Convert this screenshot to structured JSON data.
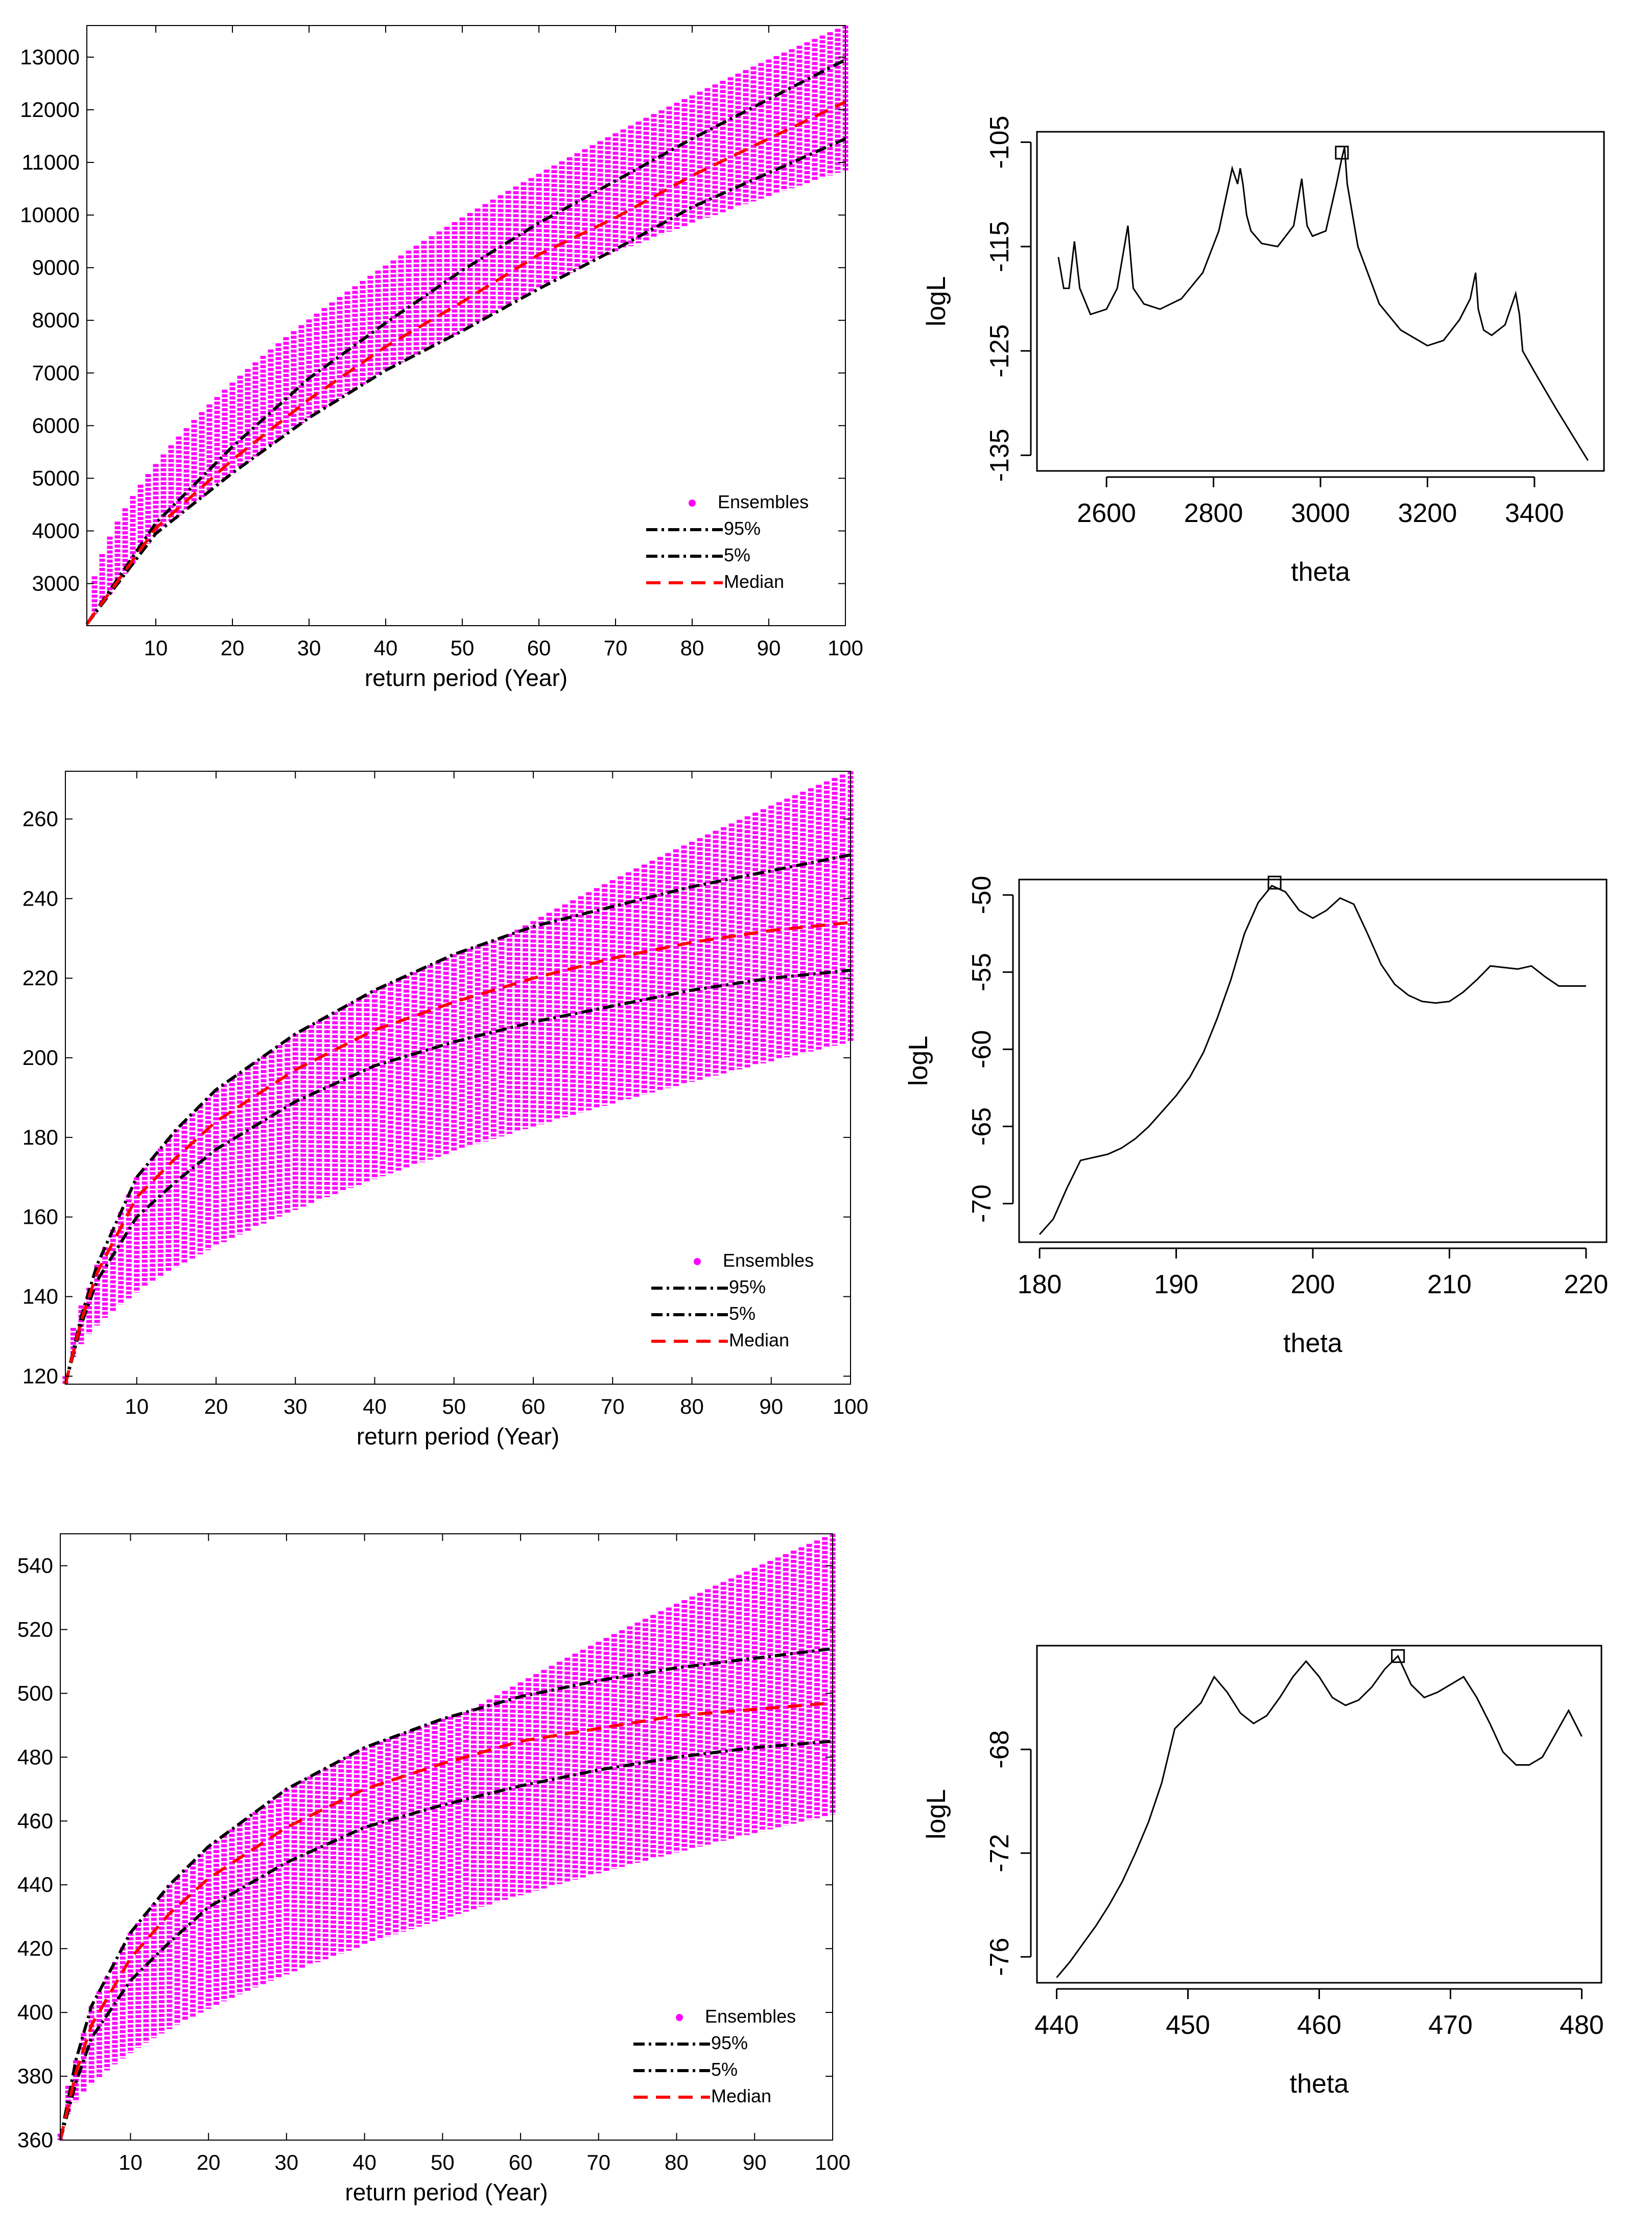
{
  "chart_data": [
    {
      "type": "scatter",
      "panel": "left-top",
      "title": "",
      "xlabel": "return period (Year)",
      "ylabel": "",
      "xlim": [
        1,
        100
      ],
      "ylim": [
        2200,
        13600
      ],
      "xticks": [
        10,
        20,
        30,
        40,
        50,
        60,
        70,
        80,
        90,
        100
      ],
      "yticks": [
        3000,
        4000,
        5000,
        6000,
        7000,
        8000,
        9000,
        10000,
        11000,
        12000,
        13000
      ],
      "legend_position": "bottom-right",
      "legend": [
        "Ensembles",
        "95%",
        "5%",
        "Median"
      ],
      "series": [
        {
          "name": "95%",
          "style": "dash-dot",
          "color": "#000000",
          "x": [
            1,
            10,
            20,
            30,
            40,
            50,
            60,
            70,
            80,
            90,
            100
          ],
          "values": [
            2230,
            4150,
            5600,
            6900,
            7950,
            8950,
            9850,
            10650,
            11450,
            12200,
            12950
          ]
        },
        {
          "name": "5%",
          "style": "dash-dot",
          "color": "#000000",
          "x": [
            1,
            10,
            20,
            30,
            40,
            50,
            60,
            70,
            80,
            90,
            100
          ],
          "values": [
            2230,
            3950,
            5100,
            6150,
            7050,
            7800,
            8600,
            9350,
            10150,
            10800,
            11450
          ]
        },
        {
          "name": "Median",
          "style": "dashed",
          "color": "#ff0000",
          "x": [
            1,
            10,
            20,
            30,
            40,
            50,
            60,
            70,
            80,
            90,
            100
          ],
          "values": [
            2230,
            4050,
            5350,
            6500,
            7500,
            8350,
            9250,
            9950,
            10750,
            11450,
            12150
          ]
        },
        {
          "name": "Ensembles",
          "style": "dots",
          "color": "#ff00ff",
          "x": [
            1,
            100
          ],
          "upper": [
            2230,
            13600
          ],
          "lower": [
            2230,
            10850
          ]
        }
      ]
    },
    {
      "type": "line",
      "panel": "right-top",
      "xlabel": "theta",
      "ylabel": "logL",
      "xlim": [
        2470,
        3530
      ],
      "ylim": [
        -136.5,
        -104
      ],
      "xticks": [
        2600,
        2800,
        3000,
        3200,
        3400
      ],
      "yticks": [
        -105,
        -115,
        -125,
        -135
      ],
      "max_marker": {
        "x": 3040,
        "y": -106
      },
      "series": [
        {
          "name": "logL",
          "x": [
            2510,
            2520,
            2530,
            2540,
            2550,
            2570,
            2600,
            2620,
            2640,
            2650,
            2670,
            2700,
            2740,
            2780,
            2810,
            2835,
            2845,
            2850,
            2855,
            2862,
            2870,
            2890,
            2920,
            2950,
            2965,
            2975,
            2985,
            3010,
            3030,
            3040,
            3045,
            3050,
            3070,
            3110,
            3150,
            3200,
            3230,
            3260,
            3280,
            3290,
            3295,
            3305,
            3320,
            3345,
            3365,
            3372,
            3378,
            3400,
            3440,
            3500
          ],
          "values": [
            -116,
            -119,
            -119,
            -114.5,
            -119,
            -121.5,
            -121,
            -119,
            -113,
            -119,
            -120.5,
            -121,
            -120,
            -117.5,
            -113.5,
            -107.5,
            -109,
            -107.5,
            -109,
            -112,
            -113.5,
            -114.7,
            -115,
            -113,
            -108.5,
            -113,
            -114,
            -113.5,
            -109,
            -106.5,
            -105.5,
            -109,
            -115,
            -120.5,
            -123,
            -124.5,
            -124,
            -122,
            -120,
            -117.5,
            -121,
            -123,
            -123.5,
            -122.5,
            -119.5,
            -121.5,
            -125,
            -127,
            -130.5,
            -135.5
          ]
        }
      ]
    },
    {
      "type": "scatter",
      "panel": "left-middle",
      "title": "",
      "xlabel": "return period (Year)",
      "ylabel": "",
      "xlim": [
        1,
        100
      ],
      "ylim": [
        118,
        272
      ],
      "xticks": [
        10,
        20,
        30,
        40,
        50,
        60,
        70,
        80,
        90,
        100
      ],
      "yticks": [
        120,
        140,
        160,
        180,
        200,
        220,
        240,
        260
      ],
      "legend_position": "bottom-right",
      "legend": [
        "Ensembles",
        "95%",
        "5%",
        "Median"
      ],
      "series": [
        {
          "name": "95%",
          "style": "dash-dot",
          "color": "#000000",
          "x": [
            1,
            3,
            5,
            10,
            15,
            20,
            30,
            40,
            50,
            60,
            70,
            80,
            90,
            100
          ],
          "values": [
            118,
            135,
            148,
            170,
            182,
            192,
            206,
            217,
            226,
            233,
            238,
            243,
            247,
            251
          ]
        },
        {
          "name": "5%",
          "style": "dash-dot",
          "color": "#000000",
          "x": [
            1,
            3,
            5,
            10,
            15,
            20,
            30,
            40,
            50,
            60,
            70,
            80,
            90,
            100
          ],
          "values": [
            118,
            133,
            144,
            160,
            169,
            177,
            189,
            198,
            204,
            209,
            213,
            217,
            220,
            222
          ]
        },
        {
          "name": "Median",
          "style": "dashed",
          "color": "#ff0000",
          "x": [
            1,
            3,
            5,
            10,
            15,
            20,
            30,
            40,
            50,
            60,
            70,
            80,
            90,
            100
          ],
          "values": [
            118,
            134,
            146,
            165,
            175,
            184,
            197,
            207,
            214,
            220,
            225,
            229,
            232,
            234
          ]
        },
        {
          "name": "Ensembles",
          "style": "dots",
          "color": "#ff00ff",
          "x": [
            1,
            100
          ],
          "upper": [
            120,
            272
          ],
          "lower": [
            118,
            204
          ]
        }
      ]
    },
    {
      "type": "line",
      "panel": "right-middle",
      "xlabel": "theta",
      "ylabel": "logL",
      "xlim": [
        178.5,
        221.5
      ],
      "ylim": [
        -72.5,
        -49
      ],
      "xticks": [
        180,
        190,
        200,
        210,
        220
      ],
      "yticks": [
        -50,
        -55,
        -60,
        -65,
        -70
      ],
      "max_marker": {
        "x": 197.2,
        "y": -49.2
      },
      "series": [
        {
          "name": "logL",
          "x": [
            180,
            181,
            182,
            183,
            184,
            185,
            186,
            187,
            188,
            189,
            190,
            191,
            192,
            193,
            194,
            195,
            196,
            197,
            198,
            199,
            200,
            201,
            202,
            203,
            204,
            205,
            206,
            207,
            208,
            209,
            210,
            211,
            212,
            213,
            214,
            215,
            216,
            217,
            218,
            219,
            220
          ],
          "values": [
            -72,
            -71,
            -69,
            -67.2,
            -67,
            -66.8,
            -66.4,
            -65.8,
            -65,
            -64,
            -63,
            -61.8,
            -60.2,
            -58,
            -55.5,
            -52.5,
            -50.5,
            -49.4,
            -49.8,
            -51,
            -51.5,
            -51,
            -50.2,
            -50.6,
            -52.5,
            -54.5,
            -55.8,
            -56.5,
            -56.9,
            -57,
            -56.9,
            -56.3,
            -55.5,
            -54.6,
            -54.7,
            -54.8,
            -54.6,
            -55.3,
            -55.9,
            -55.9,
            -55.9
          ]
        }
      ]
    },
    {
      "type": "scatter",
      "panel": "left-bottom",
      "title": "",
      "xlabel": "return period (Year)",
      "ylabel": "",
      "xlim": [
        1,
        100
      ],
      "ylim": [
        360,
        550
      ],
      "xticks": [
        10,
        20,
        30,
        40,
        50,
        60,
        70,
        80,
        90,
        100
      ],
      "yticks": [
        360,
        380,
        400,
        420,
        440,
        460,
        480,
        500,
        520,
        540
      ],
      "legend_position": "bottom-right",
      "legend": [
        "Ensembles",
        "95%",
        "5%",
        "Median"
      ],
      "series": [
        {
          "name": "95%",
          "style": "dash-dot",
          "color": "#000000",
          "x": [
            1,
            3,
            5,
            10,
            15,
            20,
            30,
            40,
            50,
            60,
            70,
            80,
            90,
            100
          ],
          "values": [
            360,
            385,
            402,
            425,
            440,
            452,
            470,
            483,
            492,
            499,
            504,
            508,
            511,
            514
          ]
        },
        {
          "name": "5%",
          "style": "dash-dot",
          "color": "#000000",
          "x": [
            1,
            3,
            5,
            10,
            15,
            20,
            30,
            40,
            50,
            60,
            70,
            80,
            90,
            100
          ],
          "values": [
            360,
            378,
            392,
            410,
            422,
            433,
            447,
            458,
            465,
            471,
            476,
            480,
            483,
            485
          ]
        },
        {
          "name": "Median",
          "style": "dashed",
          "color": "#ff0000",
          "x": [
            1,
            3,
            5,
            10,
            15,
            20,
            30,
            40,
            50,
            60,
            70,
            80,
            90,
            100
          ],
          "values": [
            360,
            381,
            396,
            417,
            431,
            442,
            458,
            470,
            478,
            485,
            489,
            493,
            495,
            497
          ]
        },
        {
          "name": "Ensembles",
          "style": "dots",
          "color": "#ff00ff",
          "x": [
            1,
            100
          ],
          "upper": [
            362,
            550
          ],
          "lower": [
            360,
            462
          ]
        }
      ]
    },
    {
      "type": "line",
      "panel": "right-bottom",
      "xlabel": "theta",
      "ylabel": "logL",
      "xlim": [
        438.5,
        481.5
      ],
      "ylim": [
        -77,
        -64
      ],
      "xticks": [
        440,
        450,
        460,
        470,
        480
      ],
      "yticks": [
        -68,
        -72,
        -76
      ],
      "max_marker": {
        "x": 466,
        "y": -64.4
      },
      "series": [
        {
          "name": "logL",
          "x": [
            440,
            441,
            442,
            443,
            444,
            445,
            446,
            447,
            448,
            449,
            450,
            451,
            452,
            453,
            454,
            455,
            456,
            457,
            458,
            459,
            460,
            461,
            462,
            463,
            464,
            465,
            466,
            467,
            468,
            469,
            470,
            471,
            472,
            473,
            474,
            475,
            476,
            477,
            478,
            479,
            480
          ],
          "values": [
            -76.8,
            -76.2,
            -75.5,
            -74.8,
            -74,
            -73.1,
            -72,
            -70.8,
            -69.3,
            -67.2,
            -66.7,
            -66.2,
            -65.2,
            -65.8,
            -66.6,
            -67,
            -66.7,
            -66,
            -65.2,
            -64.6,
            -65.2,
            -66,
            -66.3,
            -66.1,
            -65.6,
            -64.9,
            -64.4,
            -65.5,
            -66,
            -65.8,
            -65.5,
            -65.2,
            -66,
            -67,
            -68.1,
            -68.6,
            -68.6,
            -68.3,
            -67.4,
            -66.5,
            -67.5
          ]
        }
      ]
    }
  ]
}
